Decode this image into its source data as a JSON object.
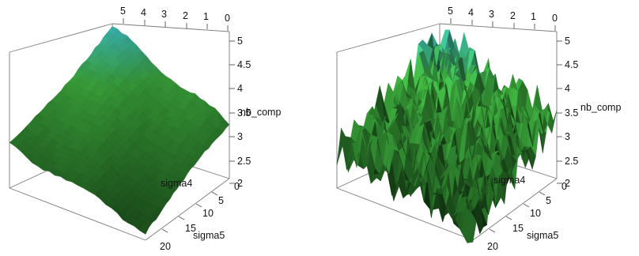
{
  "colors": {
    "surface_low": "#1f5a1f",
    "surface_mid": "#3caa3c",
    "surface_high": "#3ec7e8",
    "box": "#7a7a7a"
  },
  "chart_data": [
    {
      "type": "surface3d",
      "title": "",
      "axes": {
        "sigma4": {
          "label": "sigma4",
          "ticks": [
            "5",
            "4",
            "3",
            "2",
            "1",
            "0"
          ],
          "range": [
            0,
            5
          ]
        },
        "sigma5": {
          "label": "sigma5",
          "ticks": [
            "5",
            "10",
            "15",
            "20"
          ],
          "range": [
            0,
            20
          ]
        },
        "nb_comp": {
          "label": "nb_comp",
          "ticks": [
            "2",
            "2.5",
            "3",
            "3.5",
            "4",
            "4.5",
            "5"
          ],
          "range": [
            2,
            5
          ]
        }
      },
      "surface": {
        "smooth": true,
        "z_min": 2.2,
        "z_max": 4.3,
        "corner_values": {
          "sigma4_0_sigma5_0": 3.1,
          "sigma4_5_sigma5_0": 4.3,
          "sigma4_0_sigma5_20": 2.2,
          "sigma4_5_sigma5_20": 2.9
        }
      }
    },
    {
      "type": "surface3d",
      "title": "",
      "axes": {
        "sigma4": {
          "label": "sigma4",
          "ticks": [
            "5",
            "4",
            "3",
            "2",
            "1",
            "0"
          ],
          "range": [
            0,
            5
          ]
        },
        "sigma5": {
          "label": "sigma5",
          "ticks": [
            "5",
            "10",
            "15",
            "20"
          ],
          "range": [
            0,
            20
          ]
        },
        "nb_comp": {
          "label": "nb_comp",
          "ticks": [
            "2",
            "2.5",
            "3",
            "3.5",
            "4",
            "4.5",
            "5"
          ],
          "range": [
            2,
            5
          ]
        }
      },
      "surface": {
        "smooth": false,
        "z_min": 2.0,
        "z_max": 4.6,
        "corner_values": {
          "sigma4_0_sigma5_0": 3.2,
          "sigma4_5_sigma5_0": 4.2,
          "sigma4_0_sigma5_20": 2.3,
          "sigma4_5_sigma5_20": 2.7
        }
      }
    }
  ]
}
